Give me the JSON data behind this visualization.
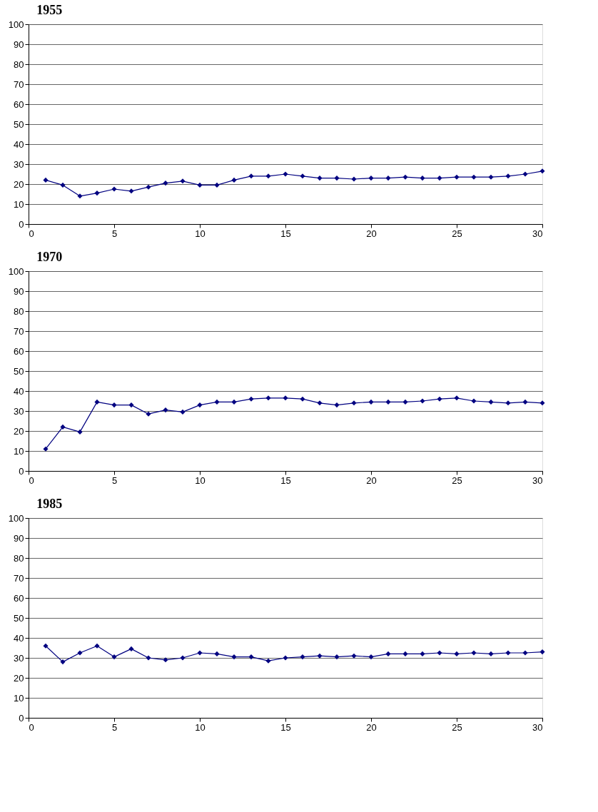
{
  "chart_data": [
    {
      "type": "line",
      "title": "1955",
      "x": [
        1,
        2,
        3,
        4,
        5,
        6,
        7,
        8,
        9,
        10,
        11,
        12,
        13,
        14,
        15,
        16,
        17,
        18,
        19,
        20,
        21,
        22,
        23,
        24,
        25,
        26,
        27,
        28,
        29,
        30
      ],
      "series": [
        {
          "color": "#000080",
          "values": [
            22,
            19.5,
            14,
            15.5,
            17.5,
            16.5,
            18.5,
            20.5,
            21.5,
            19.5,
            19.5,
            22,
            24,
            24,
            25,
            24,
            23,
            23,
            22.5,
            23,
            23,
            23.5,
            23,
            23,
            23.5,
            23.5,
            23.5,
            24,
            25,
            26.5
          ]
        }
      ],
      "xlim": [
        0,
        30
      ],
      "xticks": [
        0,
        5,
        10,
        15,
        20,
        25,
        30
      ],
      "ylim": [
        0,
        100
      ],
      "yticks": [
        0,
        10,
        20,
        30,
        40,
        50,
        60,
        70,
        80,
        90,
        100
      ],
      "grid": "y",
      "marker": "diamond",
      "line_style": "solid"
    },
    {
      "type": "line",
      "title": "1970",
      "x": [
        1,
        2,
        3,
        4,
        5,
        6,
        7,
        8,
        9,
        10,
        11,
        12,
        13,
        14,
        15,
        16,
        17,
        18,
        19,
        20,
        21,
        22,
        23,
        24,
        25,
        26,
        27,
        28,
        29,
        30
      ],
      "series": [
        {
          "color": "#000080",
          "values": [
            11,
            22,
            19.5,
            34.5,
            33,
            33,
            28.5,
            30.5,
            29.5,
            33,
            34.5,
            34.5,
            36,
            36.5,
            36.5,
            36,
            34,
            33,
            34,
            34.5,
            34.5,
            34.5,
            35,
            36,
            36.5,
            35,
            34.5,
            34,
            34.5,
            34
          ]
        }
      ],
      "xlim": [
        0,
        30
      ],
      "xticks": [
        0,
        5,
        10,
        15,
        20,
        25,
        30
      ],
      "ylim": [
        0,
        100
      ],
      "yticks": [
        0,
        10,
        20,
        30,
        40,
        50,
        60,
        70,
        80,
        90,
        100
      ],
      "grid": "y",
      "marker": "diamond",
      "line_style": "solid"
    },
    {
      "type": "line",
      "title": "1985",
      "x": [
        1,
        2,
        3,
        4,
        5,
        6,
        7,
        8,
        9,
        10,
        11,
        12,
        13,
        14,
        15,
        16,
        17,
        18,
        19,
        20,
        21,
        22,
        23,
        24,
        25,
        26,
        27,
        28,
        29,
        30
      ],
      "series": [
        {
          "color": "#000080",
          "values": [
            36,
            28,
            32.5,
            36,
            30.5,
            34.5,
            30,
            29,
            30,
            32.5,
            32,
            30.5,
            30.5,
            28.5,
            30,
            30.5,
            31,
            30.5,
            31,
            30.5,
            32,
            32,
            32,
            32.5,
            32,
            32.5,
            32,
            32.5,
            32.5,
            33
          ]
        }
      ],
      "xlim": [
        0,
        30
      ],
      "xticks": [
        0,
        5,
        10,
        15,
        20,
        25,
        30
      ],
      "ylim": [
        0,
        100
      ],
      "yticks": [
        0,
        10,
        20,
        30,
        40,
        50,
        60,
        70,
        80,
        90,
        100
      ],
      "grid": "y",
      "marker": "diamond",
      "line_style": "solid"
    }
  ]
}
